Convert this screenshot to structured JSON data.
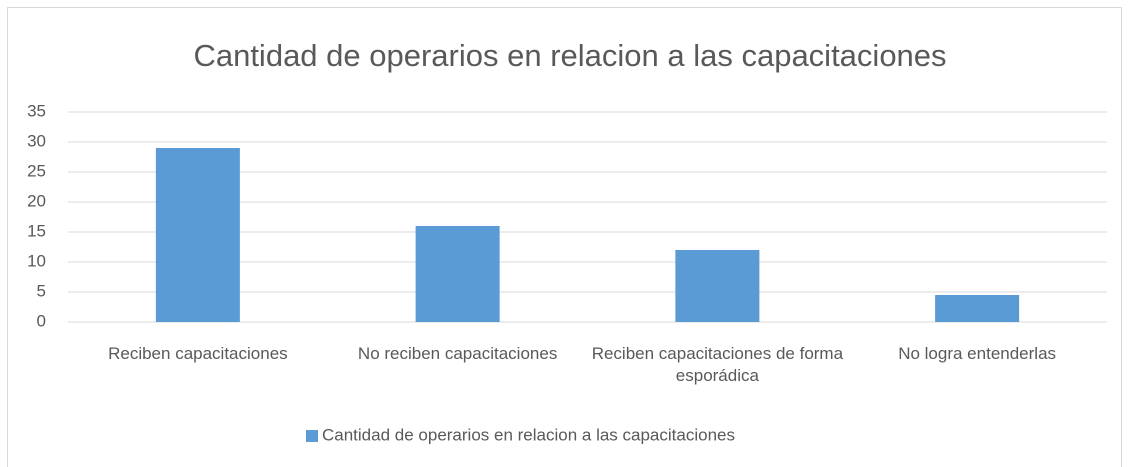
{
  "chart_data": {
    "type": "bar",
    "title": "Cantidad de operarios en relacion a las capacitaciones",
    "categories": [
      "Reciben capacitaciones",
      "No reciben capacitaciones",
      "Reciben capacitaciones de forma esporádica",
      "No logra entenderlas"
    ],
    "series": [
      {
        "name": "Cantidad de operarios en relacion a las capacitaciones",
        "color": "#5b9bd5",
        "values": [
          29,
          16,
          12,
          4.5
        ]
      }
    ],
    "ylim": [
      0,
      35
    ],
    "yticks": [
      0,
      5,
      10,
      15,
      20,
      25,
      30,
      35
    ],
    "grid": true,
    "legend": "bottom"
  }
}
